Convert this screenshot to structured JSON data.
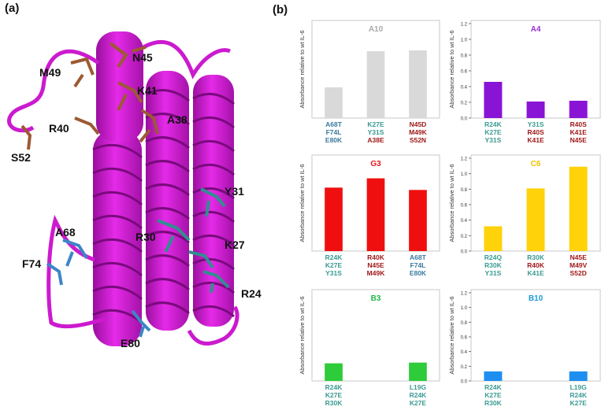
{
  "panel_labels": {
    "a": "(a)",
    "b": "(b)"
  },
  "structure_labels": [
    "N45",
    "M49",
    "K41",
    "A38",
    "R40",
    "S52",
    "Y31",
    "A68",
    "R30",
    "K27",
    "F74",
    "R24",
    "E80"
  ],
  "colors": {
    "helix": "#d417d8",
    "brown_residues": "#9c5a33",
    "teal_residues": "#2f8f8f",
    "blue_residues": "#3d86c6",
    "grey_label": "#3a7a9e",
    "teal_label": "#3a9a92",
    "red_label": "#a01818"
  },
  "chart_data": [
    {
      "type": "bar",
      "title": "A10",
      "title_color": "#aaaaaa",
      "bar_color": "#d9d9d9",
      "ylabel": "Absorbance relative to wt IL-6",
      "ylim": [
        0,
        1.2
      ],
      "ytick_labels_shown": false,
      "yticks": [],
      "categories": [
        {
          "lines": [
            "A68T",
            "F74L",
            "E80K"
          ],
          "colors": [
            "#3a7a9e",
            "#3a7a9e",
            "#3a7a9e"
          ]
        },
        {
          "lines": [
            "K27E",
            "Y31S",
            "A38E"
          ],
          "colors": [
            "#3a9a92",
            "#3a9a92",
            "#a01818"
          ]
        },
        {
          "lines": [
            "N45D",
            "M49K",
            "S52N"
          ],
          "colors": [
            "#a01818",
            "#a01818",
            "#a01818"
          ]
        }
      ],
      "values": [
        0.39,
        0.85,
        0.86
      ]
    },
    {
      "type": "bar",
      "title": "A4",
      "title_color": "#9b30d9",
      "bar_color": "#8a14d6",
      "ylabel": "Absorbance relative to wt IL-6",
      "ylim": [
        0,
        1.2
      ],
      "ytick_labels_shown": true,
      "yticks": [
        "0.0",
        "0.2",
        "0.4",
        "0.6",
        "0.8",
        "1.0",
        "1.2"
      ],
      "categories": [
        {
          "lines": [
            "R24K",
            "K27E",
            "Y31S"
          ],
          "colors": [
            "#3a9a92",
            "#3a9a92",
            "#3a9a92"
          ]
        },
        {
          "lines": [
            "Y31S",
            "R40S",
            "K41E"
          ],
          "colors": [
            "#3a9a92",
            "#a01818",
            "#a01818"
          ]
        },
        {
          "lines": [
            "R40S",
            "K41E",
            "N45E"
          ],
          "colors": [
            "#a01818",
            "#a01818",
            "#a01818"
          ]
        }
      ],
      "values": [
        0.46,
        0.21,
        0.22
      ]
    },
    {
      "type": "bar",
      "title": "G3",
      "title_color": "#e81818",
      "bar_color": "#f00f0f",
      "ylabel": "Absorbance relative to wt IL-6",
      "ylim": [
        0,
        1.2
      ],
      "ytick_labels_shown": false,
      "yticks": [],
      "categories": [
        {
          "lines": [
            "R24K",
            "K27E",
            "Y31S"
          ],
          "colors": [
            "#3a9a92",
            "#3a9a92",
            "#3a9a92"
          ]
        },
        {
          "lines": [
            "R40K",
            "N45E",
            "M49K"
          ],
          "colors": [
            "#a01818",
            "#a01818",
            "#a01818"
          ]
        },
        {
          "lines": [
            "A68T",
            "F74L",
            "E80K"
          ],
          "colors": [
            "#3a7a9e",
            "#3a7a9e",
            "#3a7a9e"
          ]
        }
      ],
      "values": [
        0.82,
        0.94,
        0.79
      ]
    },
    {
      "type": "bar",
      "title": "C6",
      "title_color": "#f2c200",
      "bar_color": "#ffd20a",
      "ylabel": "Absorbance relative to wt IL-6",
      "ylim": [
        0,
        1.2
      ],
      "ytick_labels_shown": true,
      "yticks": [
        "0.0",
        "0.2",
        "0.4",
        "0.6",
        "0.8",
        "1.0",
        "1.2"
      ],
      "categories": [
        {
          "lines": [
            "R24Q",
            "R30K",
            "Y31S"
          ],
          "colors": [
            "#3a9a92",
            "#3a9a92",
            "#3a9a92"
          ]
        },
        {
          "lines": [
            "R30K",
            "R40K",
            "K41E"
          ],
          "colors": [
            "#3a9a92",
            "#a01818",
            "#3a9a92"
          ]
        },
        {
          "lines": [
            "N45E",
            "M49V",
            "S52D"
          ],
          "colors": [
            "#a01818",
            "#a01818",
            "#a01818"
          ]
        }
      ],
      "values": [
        0.32,
        0.81,
        1.09
      ]
    },
    {
      "type": "bar",
      "title": "B3",
      "title_color": "#22b84a",
      "bar_color": "#2ecc3a",
      "ylabel": "Absorbance relative to wt IL-6",
      "ylim": [
        0,
        1.2
      ],
      "ytick_labels_shown": false,
      "yticks": [],
      "categories": [
        {
          "lines": [
            "R24K",
            "K27E",
            "R30K"
          ],
          "colors": [
            "#3a9a92",
            "#3a9a92",
            "#3a9a92"
          ]
        },
        {
          "lines": [
            "L19G",
            "R24K",
            "K27E"
          ],
          "colors": [
            "#3a9a92",
            "#3a9a92",
            "#3a9a92"
          ]
        }
      ],
      "values": [
        0.24,
        0.25
      ]
    },
    {
      "type": "bar",
      "title": "B10",
      "title_color": "#1a9ad6",
      "bar_color": "#1e8ff0",
      "ylabel": "Absorbance relative to wt IL-6",
      "ylim": [
        0,
        1.2
      ],
      "ytick_labels_shown": true,
      "yticks": [
        "0.0",
        "0.2",
        "0.4",
        "0.6",
        "0.8",
        "1.0",
        "1.2"
      ],
      "categories": [
        {
          "lines": [
            "R24K",
            "K27E",
            "R30K"
          ],
          "colors": [
            "#3a9a92",
            "#3a9a92",
            "#3a9a92"
          ]
        },
        {
          "lines": [
            "L19G",
            "R24K",
            "K27E"
          ],
          "colors": [
            "#3a9a92",
            "#3a9a92",
            "#3a9a92"
          ]
        }
      ],
      "values": [
        0.13,
        0.13
      ]
    }
  ]
}
